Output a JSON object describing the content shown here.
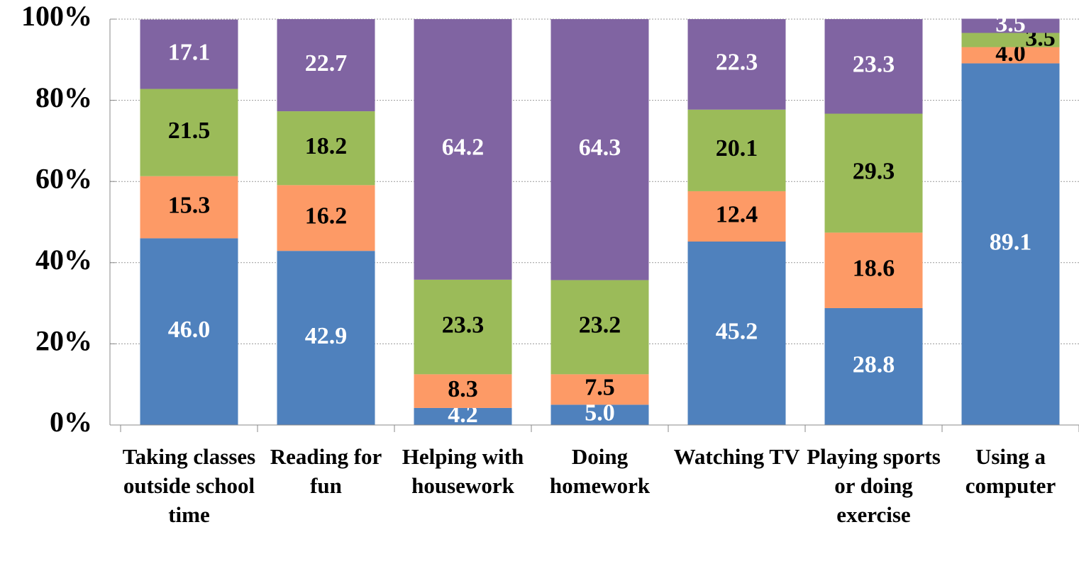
{
  "chart_data": {
    "type": "stacked_bar",
    "categories": [
      "Taking classes outside school time",
      "Reading for fun",
      "Helping with housework",
      "Doing homework",
      "Watching TV",
      "Playing sports or doing exercise",
      "Using a computer"
    ],
    "series": [
      {
        "color": "#4f81bd",
        "label_color": "#ffffff",
        "values": [
          46.0,
          42.9,
          4.2,
          5.0,
          45.2,
          28.8,
          89.1
        ],
        "value_labels": [
          "46.0",
          "42.9",
          "4.2",
          "5.0",
          "45.2",
          "28.8",
          "89.1"
        ]
      },
      {
        "color": "#fd9a66",
        "label_color": "#000000",
        "values": [
          15.3,
          16.2,
          8.3,
          7.5,
          12.4,
          18.6,
          4.0
        ],
        "value_labels": [
          "15.3",
          "16.2",
          "8.3",
          "7.5",
          "12.4",
          "18.6",
          "4.0"
        ]
      },
      {
        "color": "#9bbb59",
        "label_color": "#000000",
        "values": [
          21.5,
          18.2,
          23.3,
          23.2,
          20.1,
          29.3,
          3.5
        ],
        "value_labels": [
          "21.5",
          "18.2",
          "23.3",
          "23.2",
          "20.1",
          "29.3",
          "3.5"
        ]
      },
      {
        "color": "#8064a2",
        "label_color": "#ffffff",
        "values": [
          17.1,
          22.7,
          64.2,
          64.3,
          22.3,
          23.3,
          3.5
        ],
        "value_labels": [
          "17.1",
          "22.7",
          "64.2",
          "64.3",
          "22.3",
          "23.3",
          "3.5"
        ]
      }
    ],
    "ylim": [
      0,
      100
    ],
    "yticks": [
      {
        "value": 0,
        "label": "0%"
      },
      {
        "value": 20,
        "label": "20%"
      },
      {
        "value": 40,
        "label": "40%"
      },
      {
        "value": 60,
        "label": "60%"
      },
      {
        "value": 80,
        "label": "80%"
      },
      {
        "value": 100,
        "label": "100%"
      }
    ],
    "grid": true
  }
}
